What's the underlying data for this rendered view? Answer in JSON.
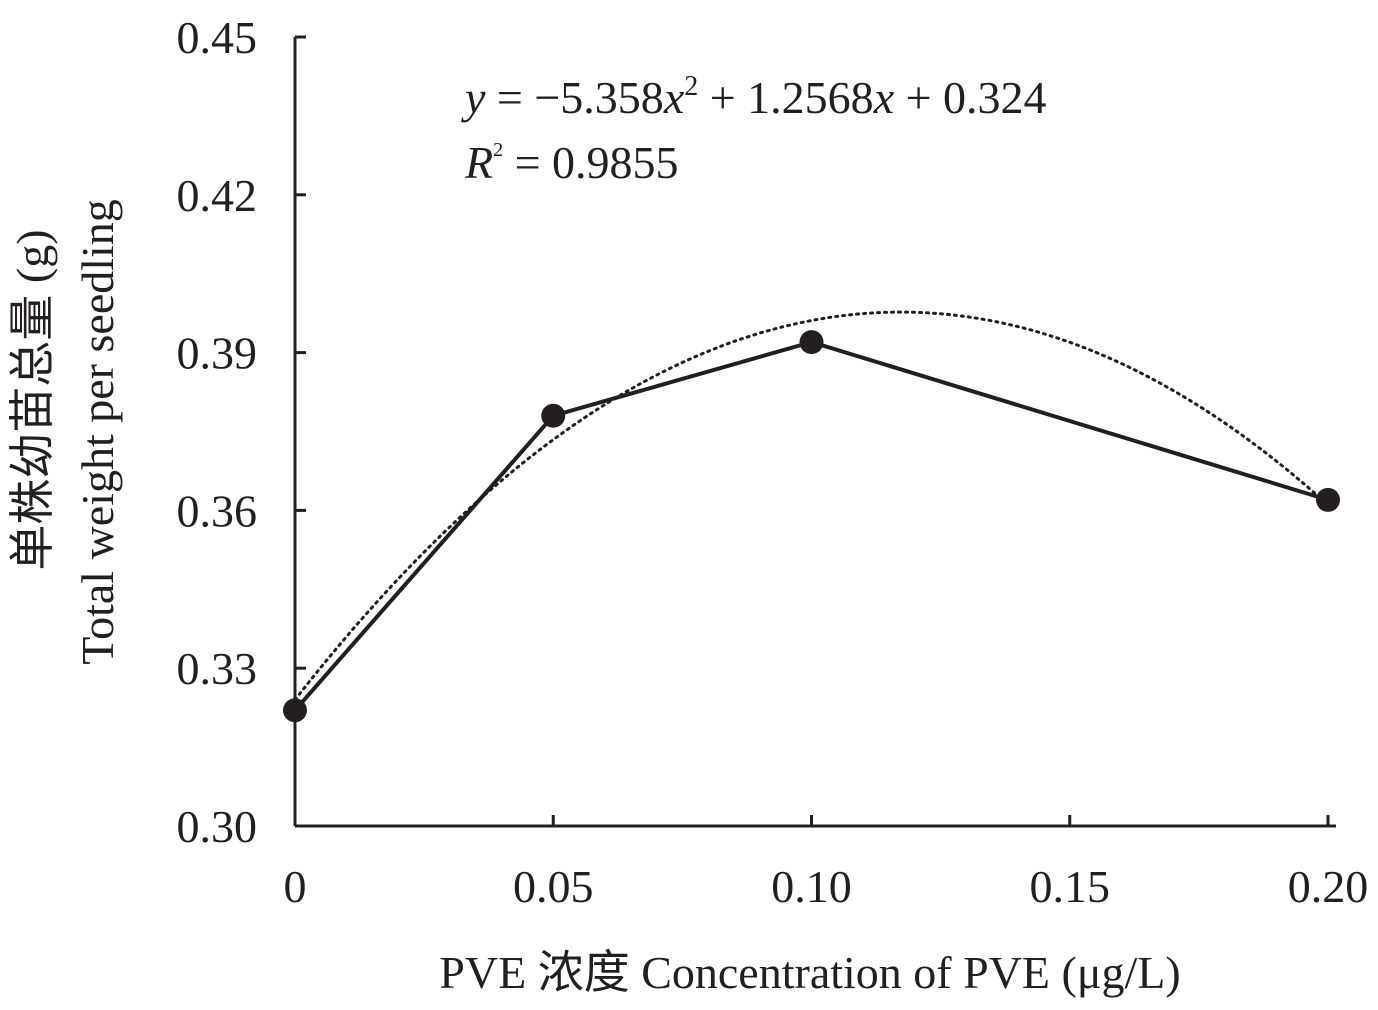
{
  "chart_data": {
    "type": "line",
    "xlabel": "PVE 浓度 Concentration of PVE (μg/L)",
    "ylabel_cn": "单株幼苗总量 (g)",
    "ylabel_en": "Total weight per seedling",
    "y_ticks": [
      "0.30",
      "0.33",
      "0.36",
      "0.39",
      "0.42",
      "0.45"
    ],
    "x_ticks": [
      "0",
      "0.05",
      "0.10",
      "0.15",
      "0.20"
    ],
    "ylim": [
      0.3,
      0.45
    ],
    "series": [
      {
        "x": [
          0,
          0.05,
          0.1,
          0.2
        ],
        "values": [
          0.322,
          0.378,
          0.392,
          0.362
        ],
        "marker": "circle",
        "line": "solid",
        "color": "#231f20"
      }
    ],
    "trendline": {
      "type": "polynomial",
      "order": 2,
      "coefficients": {
        "a": -5.358,
        "b": 1.2568,
        "c": 0.324
      },
      "style": "dotted",
      "color": "#231f20"
    },
    "equation_text": "y = −5.358x² + 1.2568x + 0.324",
    "r2_text": "R² = 0.9855",
    "grid": false
  }
}
